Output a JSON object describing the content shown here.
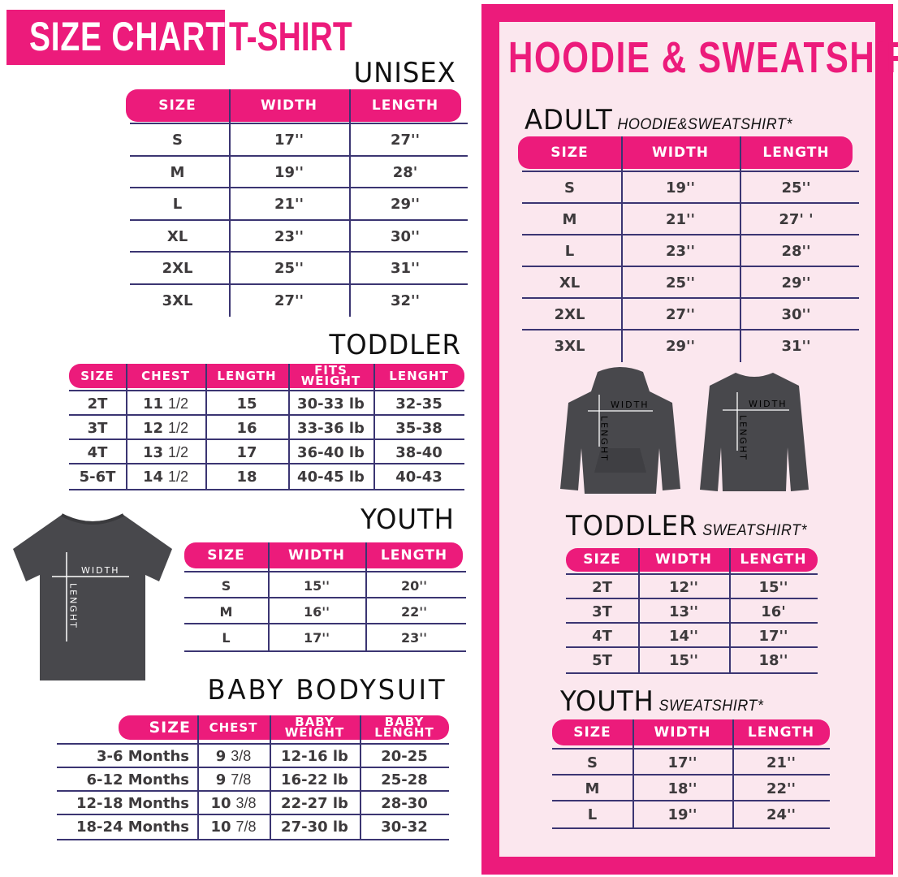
{
  "colors": {
    "accent": "#ec1b7b",
    "panel_bg": "#fbe7ee",
    "text": "#3d3a3c",
    "rule": "#3b3572",
    "garment": "#48484c"
  },
  "header": {
    "title": "SIZE CHART",
    "subtitle": "T-SHIRT"
  },
  "tshirt": {
    "unisex": {
      "title": "UNISEX",
      "headers": [
        "SIZE",
        "WIDTH",
        "LENGTH"
      ],
      "rows": [
        [
          "S",
          "17''",
          "27''"
        ],
        [
          "M",
          "19''",
          "28'"
        ],
        [
          "L",
          "21''",
          "29''"
        ],
        [
          "XL",
          "23''",
          "30''"
        ],
        [
          "2XL",
          "25''",
          "31''"
        ],
        [
          "3XL",
          "27''",
          "32''"
        ]
      ]
    },
    "toddler": {
      "title": "TODDLER",
      "headers": [
        "SIZE",
        "CHEST",
        "LENGTH",
        "FITS WEIGHT",
        "LENGHT"
      ],
      "rows": [
        [
          "2T",
          "11|1/2",
          "15",
          "30-33 lb",
          "32-35"
        ],
        [
          "3T",
          "12|1/2",
          "16",
          "33-36 lb",
          "35-38"
        ],
        [
          "4T",
          "13|1/2",
          "17",
          "36-40 lb",
          "38-40"
        ],
        [
          "5-6T",
          "14|1/2",
          "18",
          "40-45 lb",
          "40-43"
        ]
      ]
    },
    "youth": {
      "title": "YOUTH",
      "headers": [
        "SIZE",
        "WIDTH",
        "LENGTH"
      ],
      "rows": [
        [
          "S",
          "15''",
          "20''"
        ],
        [
          "M",
          "16''",
          "22''"
        ],
        [
          "L",
          "17''",
          "23''"
        ]
      ]
    },
    "baby": {
      "title": "BABY BODYSUIT",
      "headers": [
        "SIZE",
        "CHEST",
        "BABY WEIGHT",
        "BABY LENGHT"
      ],
      "rows": [
        [
          "3-6 Months",
          "9|3/8",
          "12-16 lb",
          "20-25"
        ],
        [
          "6-12 Months",
          "9|7/8",
          "16-22 lb",
          "25-28"
        ],
        [
          "12-18 Months",
          "10|3/8",
          "22-27 lb",
          "28-30"
        ],
        [
          "18-24 Months",
          "10|7/8",
          "27-30 lb",
          "30-32"
        ]
      ]
    },
    "garment_labels": {
      "width": "WIDTH",
      "length": "LENGHT"
    }
  },
  "hoodie": {
    "title": "HOODIE & SWEATSHIRT",
    "adult": {
      "title": "ADULT",
      "subtitle": "HOODIE&SWEATSHIRT*",
      "headers": [
        "SIZE",
        "WIDTH",
        "LENGTH"
      ],
      "rows": [
        [
          "S",
          "19''",
          "25''"
        ],
        [
          "M",
          "21''",
          "27' '"
        ],
        [
          "L",
          "23''",
          "28''"
        ],
        [
          "XL",
          "25''",
          "29''"
        ],
        [
          "2XL",
          "27''",
          "30''"
        ],
        [
          "3XL",
          "29''",
          "31''"
        ]
      ]
    },
    "toddler": {
      "title": "TODDLER",
      "subtitle": "SWEATSHIRT*",
      "headers": [
        "SIZE",
        "WIDTH",
        "LENGTH"
      ],
      "rows": [
        [
          "2T",
          "12''",
          "15''"
        ],
        [
          "3T",
          "13''",
          "16'"
        ],
        [
          "4T",
          "14''",
          "17''"
        ],
        [
          "5T",
          "15''",
          "18''"
        ]
      ]
    },
    "youth": {
      "title": "YOUTH",
      "subtitle": "SWEATSHIRT*",
      "headers": [
        "SIZE",
        "WIDTH",
        "LENGTH"
      ],
      "rows": [
        [
          "S",
          "17''",
          "21''"
        ],
        [
          "M",
          "18''",
          "22''"
        ],
        [
          "L",
          "19''",
          "24''"
        ]
      ]
    },
    "garment_labels": {
      "width": "WIDTH",
      "length": "LENGHT"
    }
  }
}
